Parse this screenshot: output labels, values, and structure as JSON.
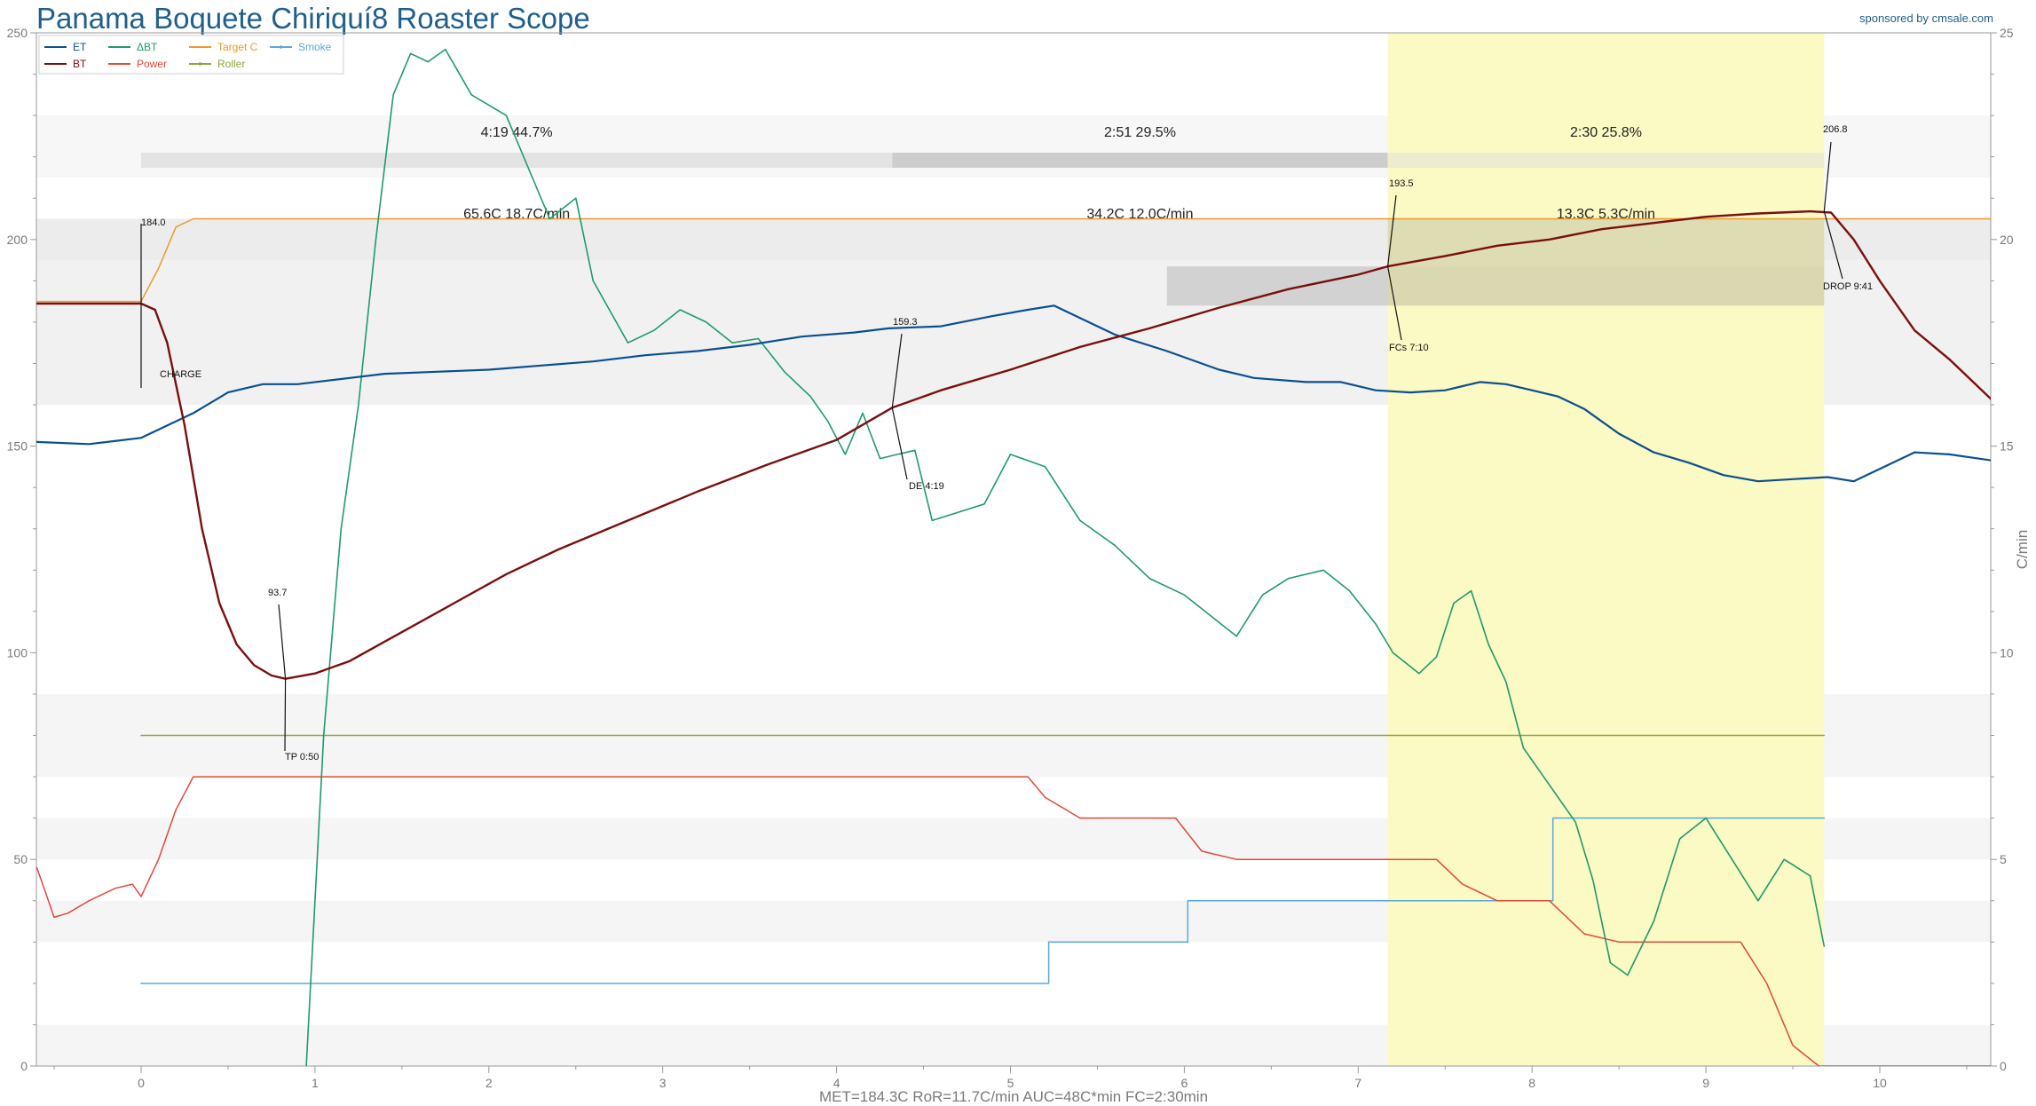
{
  "window": {
    "title": "Panama Boquete Chiriquí8 Roaster Scope",
    "sponsor": "sponsored by cmsale.com"
  },
  "chart_data": {
    "type": "line",
    "title": "Panama Boquete Chiriquí8 Roaster Scope",
    "xlim": [
      -0.6,
      10.65
    ],
    "ylim_left": [
      0,
      250
    ],
    "ylim_right": [
      0,
      25
    ],
    "ylabel_right": "C/min",
    "grid": false,
    "legend_position": "top-left",
    "x_ticks": [
      "0",
      "1",
      "2",
      "3",
      "4",
      "5",
      "6",
      "7",
      "8",
      "9",
      "10"
    ],
    "y_ticks_left": [
      "0",
      "50",
      "100",
      "150",
      "200",
      "250"
    ],
    "y_ticks_right": [
      "0",
      "5",
      "10",
      "15",
      "20",
      "25"
    ],
    "legend": [
      {
        "name": "ET",
        "color": "#0b4f8f"
      },
      {
        "name": "BT",
        "color": "#7a0f0f"
      },
      {
        "name": "ΔBT",
        "color": "#1f9a6b"
      },
      {
        "name": "Power",
        "color": "#de4a3a"
      },
      {
        "name": "Target C",
        "color": "#e89b2e"
      },
      {
        "name": "Roller",
        "color": "#8aa83a"
      },
      {
        "name": "Smoke",
        "color": "#5aa9dc"
      }
    ],
    "phases": [
      {
        "time": "4:19",
        "percent": "44.7%",
        "delta": "65.6C",
        "rate": "18.7C/min"
      },
      {
        "time": "2:51",
        "percent": "29.5%",
        "delta": "34.2C",
        "rate": "12.0C/min"
      },
      {
        "time": "2:30",
        "percent": "25.8%",
        "delta": "13.3C",
        "rate": "5.3C/min"
      }
    ],
    "development_band": {
      "start": 7.17,
      "end": 9.68
    },
    "annotations": [
      {
        "id": "charge-temp",
        "text": "184.0",
        "x": 0.0,
        "y": 184.0
      },
      {
        "id": "charge",
        "text": "CHARGE",
        "x": 0.0,
        "y": 184.0
      },
      {
        "id": "tp-temp",
        "text": "93.7",
        "x": 0.83,
        "y": 93.7
      },
      {
        "id": "tp",
        "text": "TP 0:50",
        "x": 0.83,
        "y": 93.7
      },
      {
        "id": "de-temp",
        "text": "159.3",
        "x": 4.32,
        "y": 159.3
      },
      {
        "id": "de",
        "text": "DE 4:19",
        "x": 4.32,
        "y": 159.3
      },
      {
        "id": "fcs-temp",
        "text": "193.5",
        "x": 7.17,
        "y": 193.5
      },
      {
        "id": "fcs",
        "text": "FCs 7:10",
        "x": 7.17,
        "y": 193.5
      },
      {
        "id": "drop-temp",
        "text": "206.8",
        "x": 9.68,
        "y": 206.8
      },
      {
        "id": "drop",
        "text": "DROP 9:41",
        "x": 9.68,
        "y": 206.8
      }
    ],
    "footer": "MET=184.3C   RoR=11.7C/min   AUC=48C*min   FC=2:30min",
    "series": [
      {
        "name": "ET",
        "color": "#0b4f8f",
        "points": [
          [
            -0.6,
            151
          ],
          [
            -0.3,
            150.5
          ],
          [
            0,
            152
          ],
          [
            0.1,
            154
          ],
          [
            0.3,
            158
          ],
          [
            0.5,
            163
          ],
          [
            0.7,
            165
          ],
          [
            0.9,
            165
          ],
          [
            1.2,
            166.5
          ],
          [
            1.4,
            167.5
          ],
          [
            1.7,
            168
          ],
          [
            2,
            168.5
          ],
          [
            2.3,
            169.5
          ],
          [
            2.6,
            170.5
          ],
          [
            2.9,
            172
          ],
          [
            3.2,
            173
          ],
          [
            3.5,
            174.5
          ],
          [
            3.8,
            176.5
          ],
          [
            4.1,
            177.5
          ],
          [
            4.3,
            178.5
          ],
          [
            4.6,
            179
          ],
          [
            4.9,
            181.5
          ],
          [
            5.1,
            183
          ],
          [
            5.25,
            184
          ],
          [
            5.4,
            181
          ],
          [
            5.6,
            177
          ],
          [
            5.9,
            173
          ],
          [
            6.2,
            168.5
          ],
          [
            6.4,
            166.5
          ],
          [
            6.7,
            165.5
          ],
          [
            6.9,
            165.5
          ],
          [
            7.1,
            163.5
          ],
          [
            7.3,
            163
          ],
          [
            7.5,
            163.5
          ],
          [
            7.7,
            165.5
          ],
          [
            7.85,
            165
          ],
          [
            8,
            163.5
          ],
          [
            8.15,
            162
          ],
          [
            8.3,
            159
          ],
          [
            8.5,
            153
          ],
          [
            8.7,
            148.5
          ],
          [
            8.9,
            146
          ],
          [
            9.1,
            143
          ],
          [
            9.3,
            141.5
          ],
          [
            9.5,
            142
          ],
          [
            9.7,
            142.5
          ],
          [
            9.85,
            141.5
          ],
          [
            10,
            144.5
          ],
          [
            10.2,
            148.5
          ],
          [
            10.4,
            148
          ],
          [
            10.65,
            146.5
          ]
        ]
      },
      {
        "name": "BT",
        "color": "#7a0f0f",
        "points": [
          [
            -0.6,
            184.5
          ],
          [
            -0.3,
            184.5
          ],
          [
            0,
            184.5
          ],
          [
            0.08,
            183
          ],
          [
            0.15,
            175
          ],
          [
            0.25,
            155
          ],
          [
            0.35,
            130
          ],
          [
            0.45,
            112
          ],
          [
            0.55,
            102
          ],
          [
            0.65,
            97
          ],
          [
            0.75,
            94.5
          ],
          [
            0.83,
            93.7
          ],
          [
            1,
            95
          ],
          [
            1.2,
            98
          ],
          [
            1.5,
            105
          ],
          [
            1.8,
            112
          ],
          [
            2.1,
            119
          ],
          [
            2.4,
            125
          ],
          [
            2.8,
            132
          ],
          [
            3.2,
            139
          ],
          [
            3.6,
            145.5
          ],
          [
            4,
            151.5
          ],
          [
            4.32,
            159.3
          ],
          [
            4.6,
            163.5
          ],
          [
            5,
            168.5
          ],
          [
            5.4,
            174
          ],
          [
            5.8,
            178.5
          ],
          [
            6.2,
            183.5
          ],
          [
            6.6,
            188
          ],
          [
            7,
            191.5
          ],
          [
            7.17,
            193.5
          ],
          [
            7.5,
            196
          ],
          [
            7.8,
            198.5
          ],
          [
            8.1,
            200
          ],
          [
            8.4,
            202.5
          ],
          [
            8.7,
            204
          ],
          [
            9,
            205.5
          ],
          [
            9.3,
            206.3
          ],
          [
            9.6,
            206.8
          ],
          [
            9.72,
            206.5
          ],
          [
            9.85,
            200
          ],
          [
            10,
            190
          ],
          [
            10.2,
            178
          ],
          [
            10.4,
            171
          ],
          [
            10.55,
            165
          ],
          [
            10.65,
            161
          ]
        ]
      },
      {
        "name": "ΔBT",
        "axis": "right",
        "color": "#1f9a6b",
        "points": [
          [
            0.95,
            0
          ],
          [
            1.05,
            8
          ],
          [
            1.15,
            13
          ],
          [
            1.25,
            16
          ],
          [
            1.35,
            20
          ],
          [
            1.45,
            23.5
          ],
          [
            1.55,
            24.5
          ],
          [
            1.65,
            24.3
          ],
          [
            1.75,
            24.6
          ],
          [
            1.9,
            23.5
          ],
          [
            2.1,
            23
          ],
          [
            2.25,
            21.5
          ],
          [
            2.35,
            20.5
          ],
          [
            2.5,
            21
          ],
          [
            2.6,
            19
          ],
          [
            2.8,
            17.5
          ],
          [
            2.95,
            17.8
          ],
          [
            3.1,
            18.3
          ],
          [
            3.25,
            18
          ],
          [
            3.4,
            17.5
          ],
          [
            3.55,
            17.6
          ],
          [
            3.7,
            16.8
          ],
          [
            3.85,
            16.2
          ],
          [
            3.95,
            15.6
          ],
          [
            4.05,
            14.8
          ],
          [
            4.15,
            15.8
          ],
          [
            4.25,
            14.7
          ],
          [
            4.35,
            14.8
          ],
          [
            4.45,
            14.9
          ],
          [
            4.55,
            13.2
          ],
          [
            4.7,
            13.4
          ],
          [
            4.85,
            13.6
          ],
          [
            5,
            14.8
          ],
          [
            5.2,
            14.5
          ],
          [
            5.4,
            13.2
          ],
          [
            5.6,
            12.6
          ],
          [
            5.8,
            11.8
          ],
          [
            6,
            11.4
          ],
          [
            6.15,
            10.9
          ],
          [
            6.3,
            10.4
          ],
          [
            6.45,
            11.4
          ],
          [
            6.6,
            11.8
          ],
          [
            6.8,
            12
          ],
          [
            6.95,
            11.5
          ],
          [
            7.1,
            10.7
          ],
          [
            7.2,
            10
          ],
          [
            7.35,
            9.5
          ],
          [
            7.45,
            9.9
          ],
          [
            7.55,
            11.2
          ],
          [
            7.65,
            11.5
          ],
          [
            7.75,
            10.2
          ],
          [
            7.85,
            9.3
          ],
          [
            7.95,
            7.7
          ],
          [
            8.05,
            7.1
          ],
          [
            8.15,
            6.5
          ],
          [
            8.25,
            5.9
          ],
          [
            8.35,
            4.5
          ],
          [
            8.45,
            2.5
          ],
          [
            8.55,
            2.2
          ],
          [
            8.7,
            3.5
          ],
          [
            8.85,
            5.5
          ],
          [
            9,
            6
          ],
          [
            9.15,
            5
          ],
          [
            9.3,
            4
          ],
          [
            9.45,
            5
          ],
          [
            9.6,
            4.6
          ],
          [
            9.68,
            2.9
          ]
        ]
      },
      {
        "name": "Power",
        "color": "#de4a3a",
        "points": [
          [
            -0.6,
            48
          ],
          [
            -0.55,
            42
          ],
          [
            -0.5,
            36
          ],
          [
            -0.42,
            37
          ],
          [
            -0.3,
            40
          ],
          [
            -0.15,
            43
          ],
          [
            -0.05,
            44
          ],
          [
            0,
            41
          ],
          [
            0.1,
            50
          ],
          [
            0.2,
            62
          ],
          [
            0.3,
            70
          ],
          [
            1,
            70
          ],
          [
            2,
            70
          ],
          [
            3,
            70
          ],
          [
            4,
            70
          ],
          [
            5.1,
            70
          ],
          [
            5.2,
            65
          ],
          [
            5.4,
            60
          ],
          [
            5.6,
            60
          ],
          [
            5.95,
            60
          ],
          [
            6.1,
            52
          ],
          [
            6.3,
            50
          ],
          [
            6.8,
            50
          ],
          [
            7.45,
            50
          ],
          [
            7.6,
            44
          ],
          [
            7.8,
            40
          ],
          [
            8.1,
            40
          ],
          [
            8.3,
            32
          ],
          [
            8.5,
            30
          ],
          [
            9.2,
            30
          ],
          [
            9.35,
            20
          ],
          [
            9.5,
            5
          ],
          [
            9.65,
            0
          ],
          [
            10.65,
            0
          ]
        ]
      },
      {
        "name": "Target C",
        "color": "#e89b2e",
        "points": [
          [
            -0.6,
            185
          ],
          [
            0,
            185
          ],
          [
            0.1,
            193
          ],
          [
            0.2,
            203
          ],
          [
            0.3,
            205
          ],
          [
            10.65,
            205
          ]
        ]
      },
      {
        "name": "Roller",
        "color": "#8aa83a",
        "points": [
          [
            0,
            80
          ],
          [
            9.68,
            80
          ]
        ]
      },
      {
        "name": "Smoke",
        "color": "#5aa9dc",
        "step": true,
        "points": [
          [
            0,
            20
          ],
          [
            5.22,
            20
          ],
          [
            5.22,
            30
          ],
          [
            6.02,
            30
          ],
          [
            6.02,
            40
          ],
          [
            8.12,
            40
          ],
          [
            8.12,
            60
          ],
          [
            9.68,
            60
          ]
        ]
      }
    ]
  }
}
